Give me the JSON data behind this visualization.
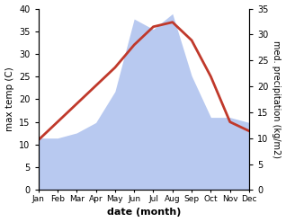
{
  "months": [
    "Jan",
    "Feb",
    "Mar",
    "Apr",
    "May",
    "Jun",
    "Jul",
    "Aug",
    "Sep",
    "Oct",
    "Nov",
    "Dec"
  ],
  "temperature": [
    11,
    15,
    19,
    23,
    27,
    32,
    36,
    37,
    33,
    25,
    15,
    13
  ],
  "precipitation": [
    10,
    10,
    11,
    13,
    19,
    33,
    31,
    34,
    22,
    14,
    14,
    13
  ],
  "temp_color": "#c0392b",
  "precip_color": "#b8c9f0",
  "ylabel_left": "max temp (C)",
  "ylabel_right": "med. precipitation (kg/m2)",
  "xlabel": "date (month)",
  "ylim_left": [
    0,
    40
  ],
  "ylim_right": [
    0,
    35
  ],
  "temp_linewidth": 2.0,
  "background_color": "#ffffff"
}
